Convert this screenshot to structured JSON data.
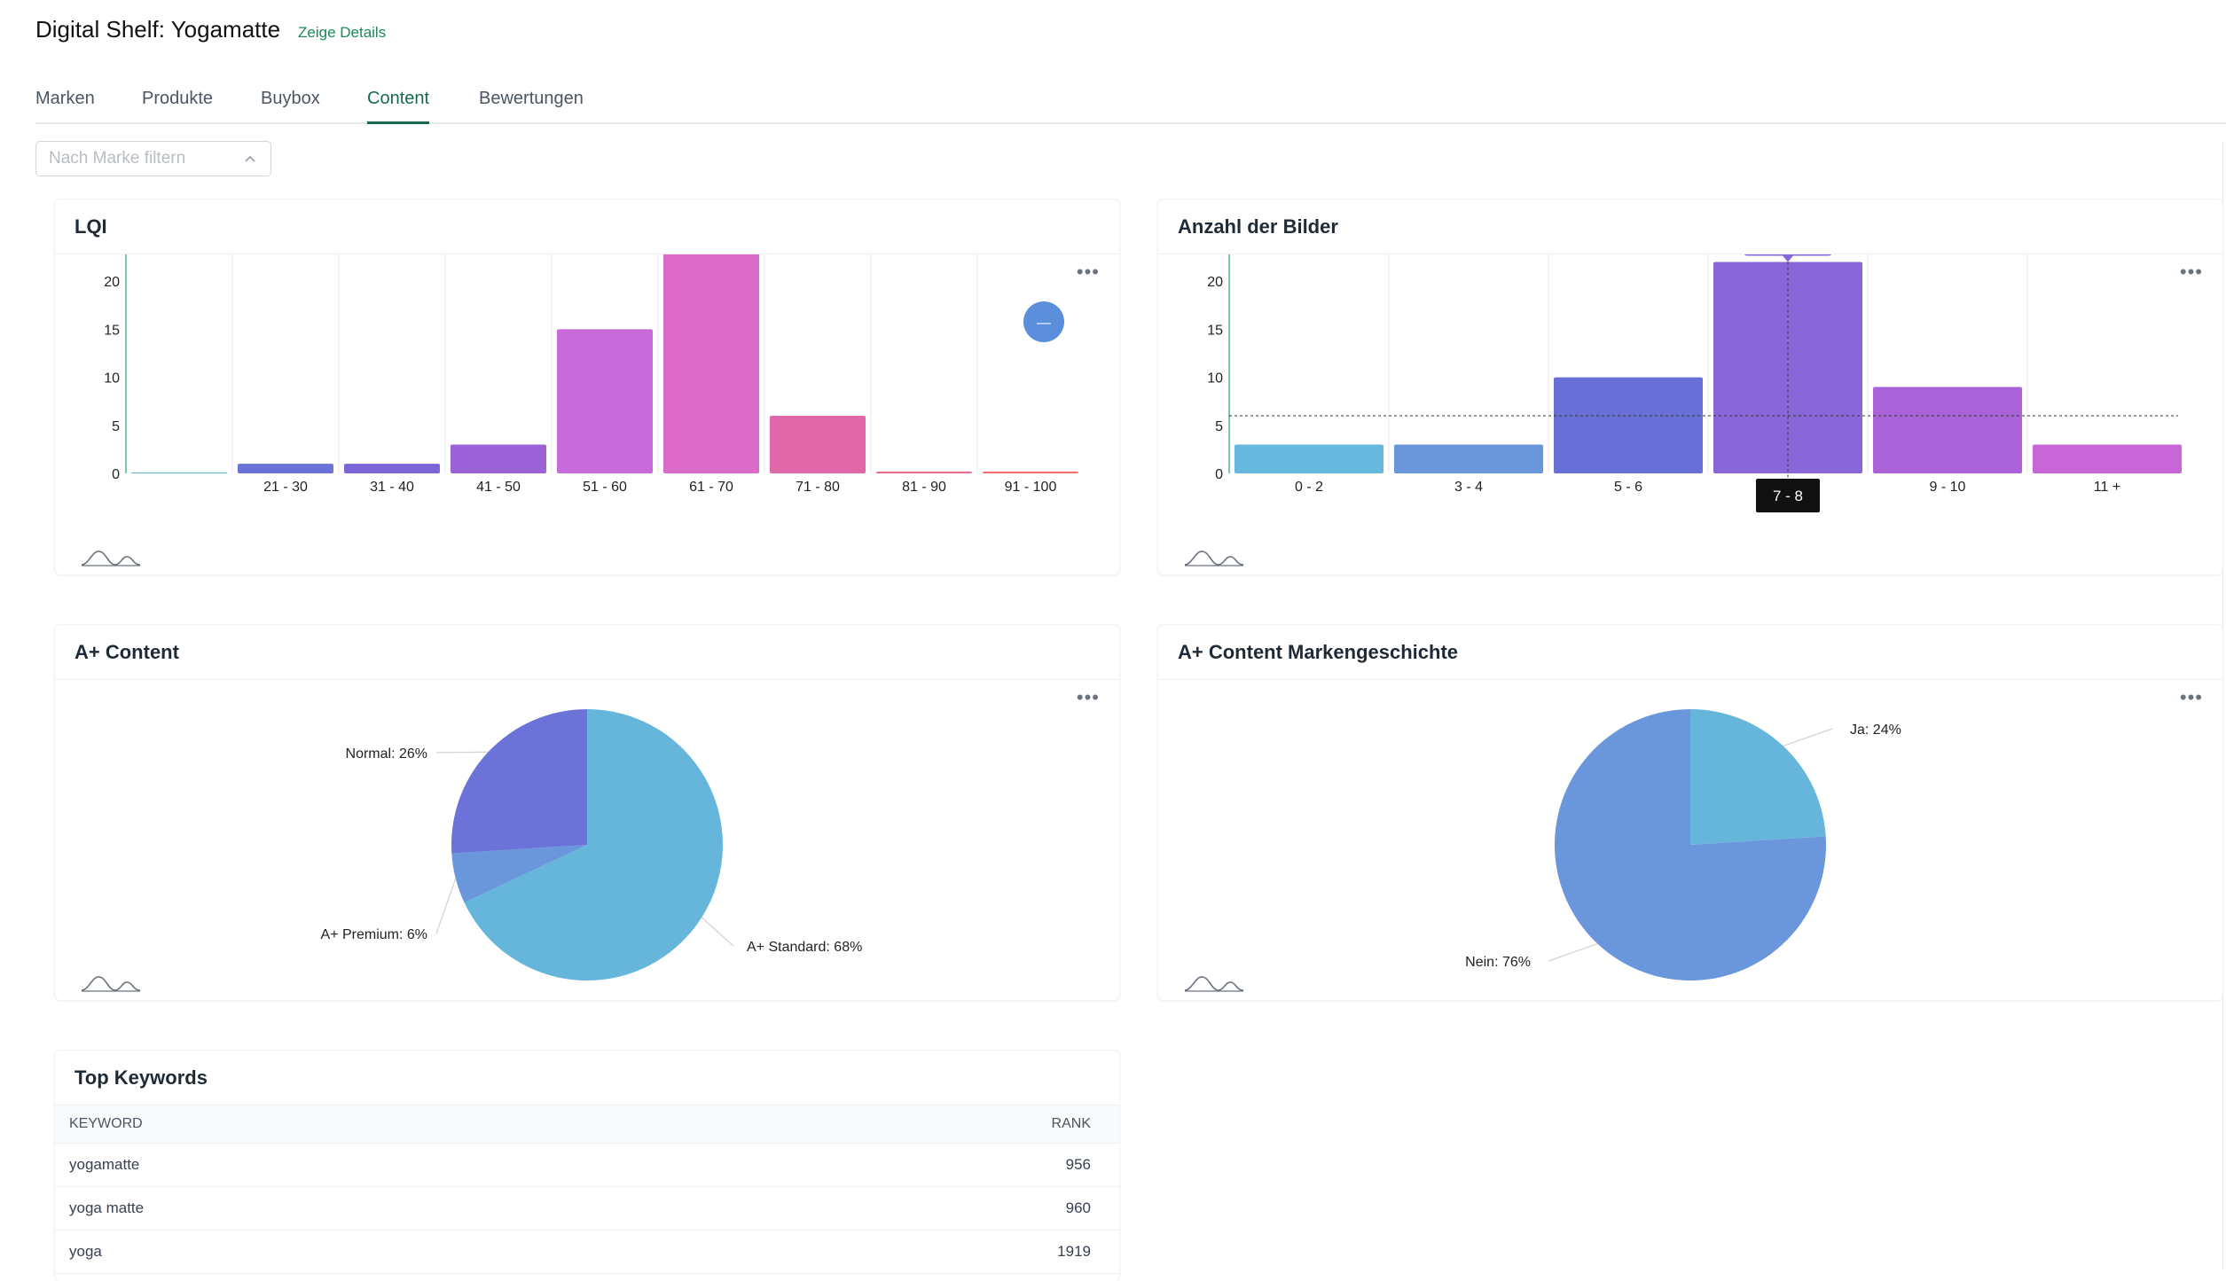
{
  "header": {
    "title": "Digital Shelf: Yogamatte",
    "details_link": "Zeige Details"
  },
  "tabs": [
    {
      "label": "Marken",
      "active": false
    },
    {
      "label": "Produkte",
      "active": false
    },
    {
      "label": "Buybox",
      "active": false
    },
    {
      "label": "Content",
      "active": true
    },
    {
      "label": "Bewertungen",
      "active": false
    }
  ],
  "filter": {
    "placeholder": "Nach Marke filtern",
    "value": ""
  },
  "colors": {
    "accent": "#156b4a",
    "link": "#1b8a5a",
    "tooltip": "#8a67d9"
  },
  "cards": {
    "lqi": {
      "title": "LQI",
      "chart_data": {
        "type": "bar",
        "categories": [
          "",
          "21  - 30",
          "31  - 40",
          "41  - 50",
          "51  - 60",
          "61  - 70",
          "71  - 80",
          "81  - 90",
          "91  - 100"
        ],
        "values": [
          0,
          1,
          1,
          3,
          15,
          24,
          6,
          0.2,
          0.2
        ],
        "colors": [
          "#66b8de",
          "#6b72d8",
          "#7b64d6",
          "#9a62d6",
          "#c86ad8",
          "#dc6ac8",
          "#e068a8",
          "#ee6d8a",
          "#f07070"
        ],
        "ylim": [
          0,
          25
        ],
        "yticks": [
          0,
          5,
          10,
          15,
          20,
          25
        ],
        "grid": true,
        "legend_marker": "—"
      }
    },
    "images": {
      "title": "Anzahl der Bilder",
      "chart_data": {
        "type": "bar",
        "categories": [
          "0  - 2",
          "3  - 4",
          "5  - 6",
          "7  - 8",
          "9  - 10",
          "11 +"
        ],
        "values": [
          3,
          3,
          10,
          22,
          9,
          3
        ],
        "colors": [
          "#66b8de",
          "#6a96dc",
          "#6870d8",
          "#8a67d9",
          "#aa62d8",
          "#c866d8"
        ],
        "ylim": [
          0,
          25
        ],
        "yticks": [
          0,
          5,
          10,
          15,
          20,
          25
        ],
        "grid": true,
        "reference_line": 6,
        "hover": {
          "index": 3,
          "tooltip": "7  - 8 : 22",
          "axis_label": "7 - 8"
        }
      }
    },
    "aplus": {
      "title": "A+ Content",
      "chart_data": {
        "type": "pie",
        "slices": [
          {
            "label": "A+ Standard: 68%",
            "value": 68,
            "color": "#66b6dc"
          },
          {
            "label": "A+ Premium: 6%",
            "value": 6,
            "color": "#6a96dc"
          },
          {
            "label": "Normal: 26%",
            "value": 26,
            "color": "#6b72d8"
          }
        ]
      }
    },
    "brandstory": {
      "title": "A+ Content Markengeschichte",
      "chart_data": {
        "type": "pie",
        "slices": [
          {
            "label": "Ja: 24%",
            "value": 24,
            "color": "#66b6dc"
          },
          {
            "label": "Nein: 76%",
            "value": 76,
            "color": "#6a96dc"
          }
        ]
      }
    },
    "keywords": {
      "title": "Top Keywords",
      "columns": {
        "keyword": "KEYWORD",
        "rank": "RANK"
      },
      "rows": [
        {
          "keyword": "yogamatte",
          "rank": "956"
        },
        {
          "keyword": "yoga matte",
          "rank": "960"
        },
        {
          "keyword": "yoga",
          "rank": "1919"
        }
      ]
    }
  },
  "icons": {
    "menu": "more-horizontal-icon",
    "zoom": "chart-zoom-icon",
    "chevron": "chevron-up-icon"
  }
}
